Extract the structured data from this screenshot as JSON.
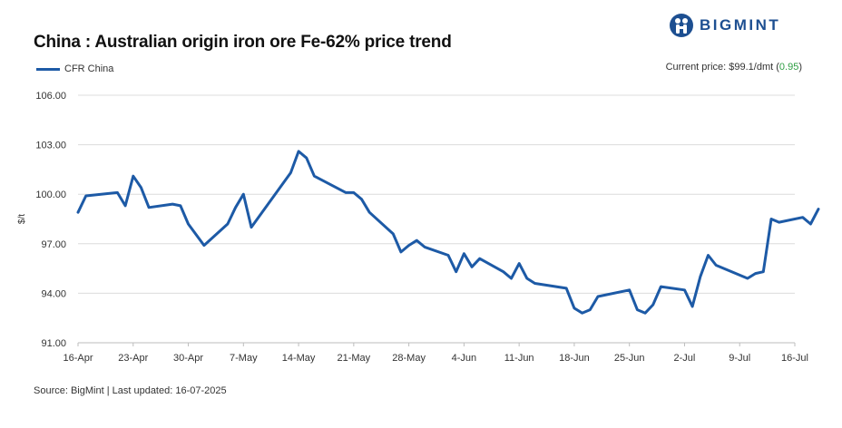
{
  "header": {
    "title": "China : Australian origin iron ore Fe-62% price trend",
    "brand": "BIGMINT"
  },
  "legend": {
    "series_label": "CFR China"
  },
  "current_price": {
    "label": "Current price: $99.1/dmt (",
    "change": "0.95",
    "suffix": ")"
  },
  "source": "Source: BigMint | Last updated: 16-07-2025",
  "colors": {
    "series": "#1d5aa6",
    "grid": "#dcdcdc",
    "brand": "#1d4f91",
    "positive": "#2e9e44"
  },
  "chart_data": {
    "type": "line",
    "title": "China : Australian origin iron ore Fe-62% price trend",
    "xlabel": "",
    "ylabel": "$/t",
    "ylim": [
      91,
      106
    ],
    "yticks": [
      "91.00",
      "94.00",
      "97.00",
      "100.00",
      "103.00",
      "106.00"
    ],
    "ytick_values": [
      91,
      94,
      97,
      100,
      103,
      106
    ],
    "xlim": [
      0,
      91
    ],
    "xticks": [
      "16-Apr",
      "23-Apr",
      "30-Apr",
      "7-May",
      "14-May",
      "21-May",
      "28-May",
      "4-Jun",
      "11-Jun",
      "18-Jun",
      "25-Jun",
      "2-Jul",
      "9-Jul",
      "16-Jul"
    ],
    "xtick_days": [
      0,
      7,
      14,
      21,
      28,
      35,
      42,
      49,
      56,
      63,
      70,
      77,
      84,
      91
    ],
    "grid": true,
    "legend_position": "top-left",
    "series": [
      {
        "name": "CFR China",
        "points": [
          [
            0,
            98.9
          ],
          [
            1,
            99.9
          ],
          [
            5,
            100.1
          ],
          [
            6,
            99.3
          ],
          [
            7,
            101.1
          ],
          [
            8,
            100.4
          ],
          [
            9,
            99.2
          ],
          [
            12,
            99.4
          ],
          [
            13,
            99.3
          ],
          [
            14,
            98.2
          ],
          [
            16,
            96.9
          ],
          [
            19,
            98.2
          ],
          [
            20,
            99.2
          ],
          [
            21,
            100.0
          ],
          [
            22,
            98.0
          ],
          [
            27,
            101.3
          ],
          [
            28,
            102.6
          ],
          [
            29,
            102.2
          ],
          [
            30,
            101.1
          ],
          [
            34,
            100.1
          ],
          [
            35,
            100.1
          ],
          [
            36,
            99.7
          ],
          [
            37,
            98.9
          ],
          [
            40,
            97.6
          ],
          [
            41,
            96.5
          ],
          [
            42,
            96.9
          ],
          [
            43,
            97.2
          ],
          [
            44,
            96.8
          ],
          [
            47,
            96.3
          ],
          [
            48,
            95.3
          ],
          [
            49,
            96.4
          ],
          [
            50,
            95.6
          ],
          [
            51,
            96.1
          ],
          [
            54,
            95.3
          ],
          [
            55,
            94.9
          ],
          [
            56,
            95.8
          ],
          [
            57,
            94.9
          ],
          [
            58,
            94.6
          ],
          [
            62,
            94.3
          ],
          [
            63,
            93.1
          ],
          [
            64,
            92.8
          ],
          [
            65,
            93.0
          ],
          [
            66,
            93.8
          ],
          [
            70,
            94.2
          ],
          [
            71,
            93.0
          ],
          [
            72,
            92.8
          ],
          [
            73,
            93.3
          ],
          [
            74,
            94.4
          ],
          [
            77,
            94.2
          ],
          [
            78,
            93.2
          ],
          [
            79,
            95.0
          ],
          [
            80,
            96.3
          ],
          [
            81,
            95.7
          ],
          [
            85,
            94.9
          ],
          [
            86,
            95.2
          ],
          [
            87,
            95.3
          ],
          [
            88,
            98.5
          ],
          [
            89,
            98.3
          ],
          [
            92,
            98.6
          ],
          [
            93,
            98.2
          ],
          [
            94,
            99.1
          ]
        ]
      }
    ]
  }
}
